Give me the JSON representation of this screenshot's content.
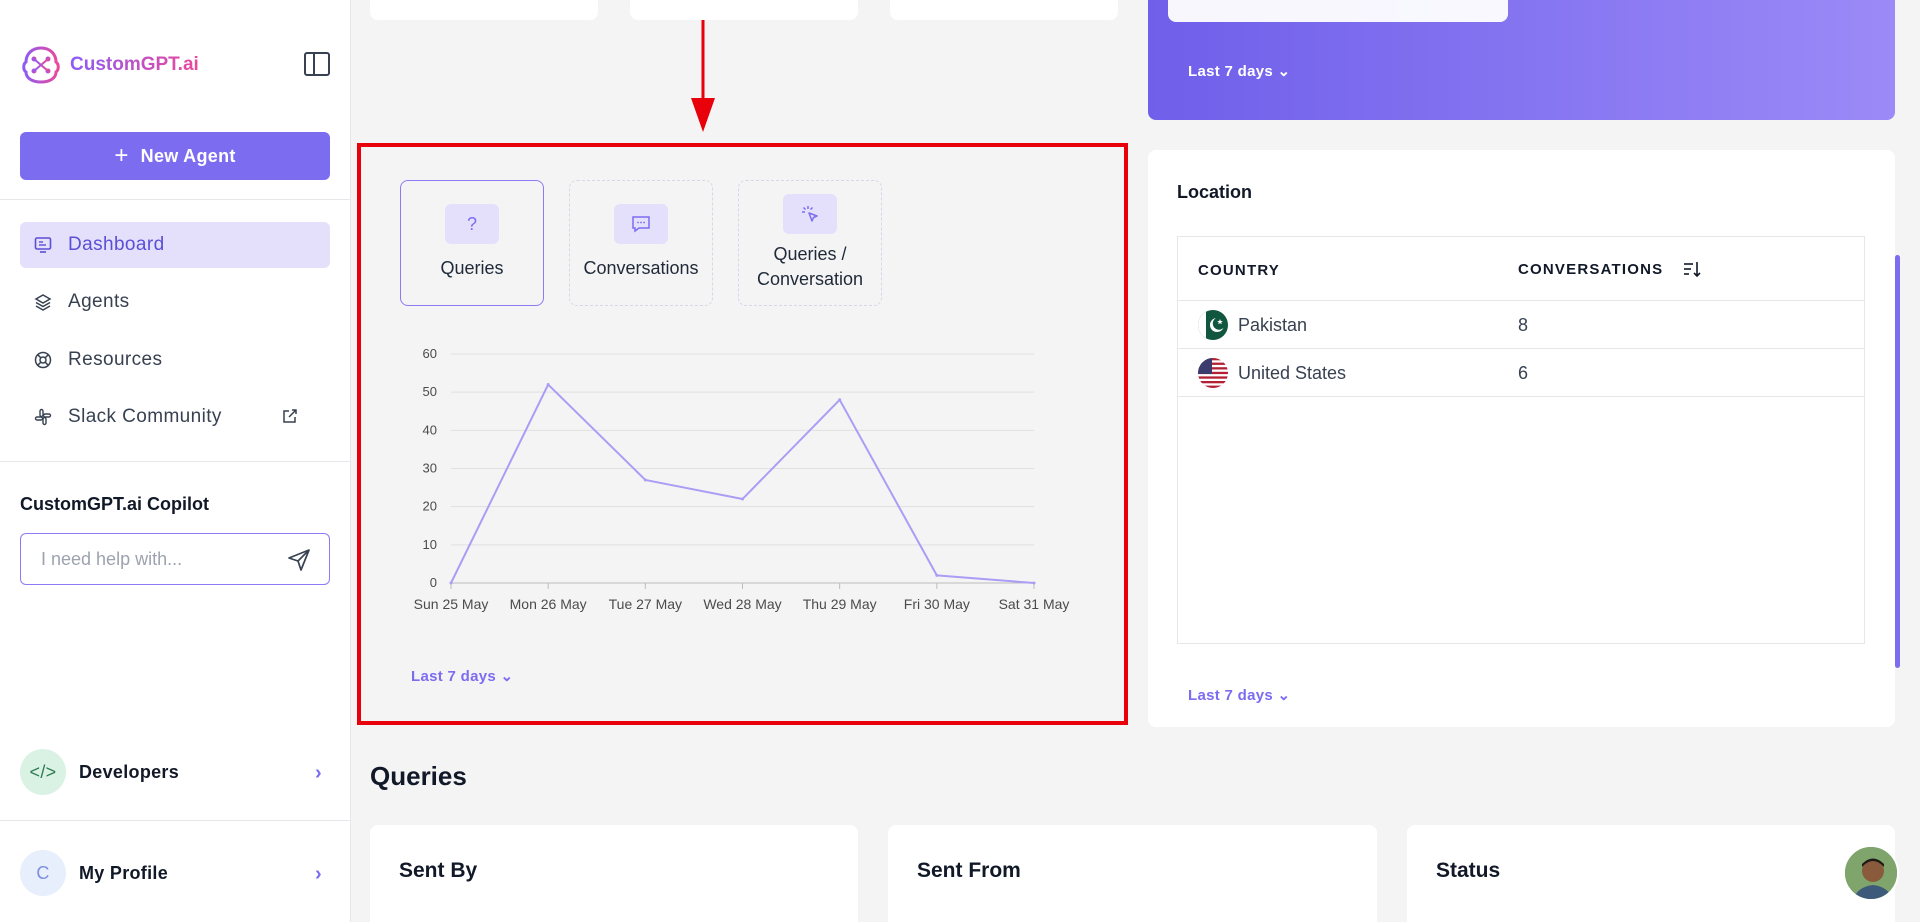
{
  "app": {
    "name": "CustomGPT.ai",
    "brand_color": "#7c6cf0",
    "new_agent_label": "New Agent"
  },
  "sidebar": {
    "items": [
      {
        "label": "Dashboard",
        "icon": "dashboard-icon",
        "active": true
      },
      {
        "label": "Agents",
        "icon": "layers-icon",
        "active": false
      },
      {
        "label": "Resources",
        "icon": "lifebuoy-icon",
        "active": false
      },
      {
        "label": "Slack Community",
        "icon": "slack-icon",
        "active": false
      }
    ],
    "copilot": {
      "title": "CustomGPT.ai Copilot",
      "placeholder": "I need help with..."
    },
    "developers_label": "Developers",
    "profile_label": "My Profile",
    "profile_initial": "C"
  },
  "top_card": {
    "range_label": "Last 7 days"
  },
  "metrics": {
    "tabs": [
      {
        "label": "Queries",
        "icon": "question-icon",
        "active": true
      },
      {
        "label": "Conversations",
        "icon": "chat-icon",
        "active": false
      },
      {
        "label_line1": "Queries /",
        "label_line2": "Conversation",
        "icon": "cursor-click-icon",
        "active": false
      }
    ],
    "range_label": "Last 7 days"
  },
  "chart_data": {
    "type": "line",
    "categories": [
      "Sun 25 May",
      "Mon 26 May",
      "Tue 27 May",
      "Wed 28 May",
      "Thu 29 May",
      "Fri 30 May",
      "Sat 31 May"
    ],
    "values": [
      0,
      52,
      27,
      22,
      48,
      2,
      0
    ],
    "yticks": [
      0,
      10,
      20,
      30,
      40,
      50,
      60
    ],
    "ylim": [
      0,
      60
    ],
    "color": "#a99df5",
    "grid": true
  },
  "location": {
    "title": "Location",
    "col_country": "COUNTRY",
    "col_conversations": "CONVERSATIONS",
    "rows": [
      {
        "country": "Pakistan",
        "value": "8",
        "flag": "pakistan-flag"
      },
      {
        "country": "United States",
        "value": "6",
        "flag": "us-flag"
      }
    ],
    "range_label": "Last 7 days"
  },
  "queries_section": {
    "title": "Queries",
    "cards": [
      "Sent By",
      "Sent From",
      "Status"
    ]
  }
}
